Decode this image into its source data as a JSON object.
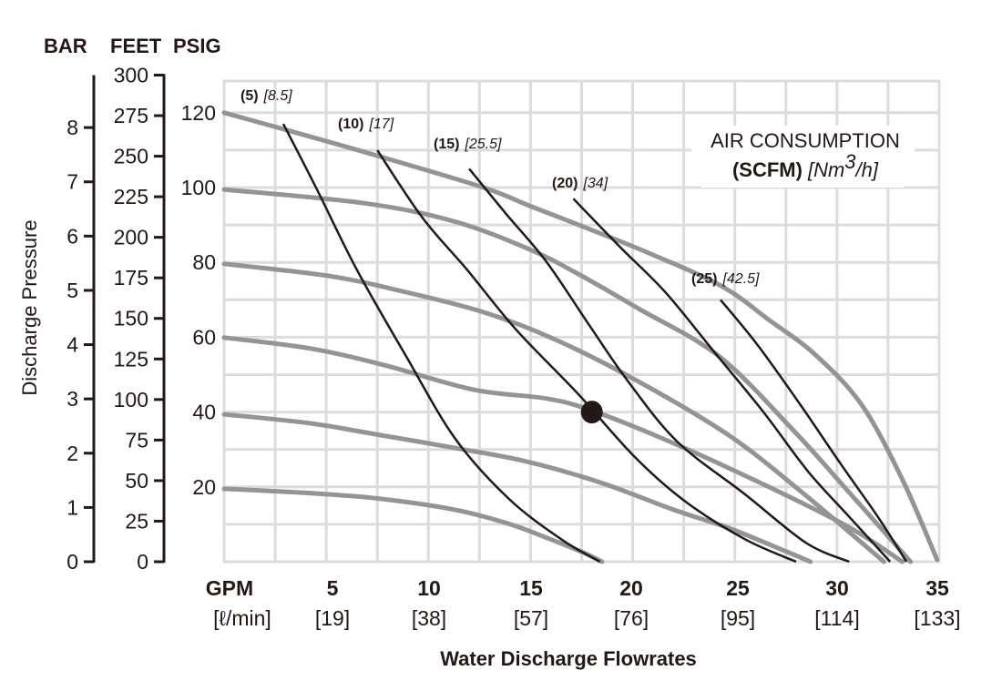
{
  "chart_data": {
    "type": "line",
    "title": "",
    "xlabel": "Water Discharge Flowrates",
    "ylabel": "Discharge Pressure",
    "xlim": [
      0,
      35
    ],
    "ylim": [
      0,
      128
    ],
    "grid": true,
    "x_axis": {
      "unit_label": "GPM",
      "alt_unit_label": "[ℓ/min]",
      "ticks": [
        {
          "value": 5,
          "label": "5",
          "alt": "[19]"
        },
        {
          "value": 10,
          "label": "10",
          "alt": "[38]"
        },
        {
          "value": 15,
          "label": "15",
          "alt": "[57]"
        },
        {
          "value": 20,
          "label": "20",
          "alt": "[76]"
        },
        {
          "value": 25,
          "label": "25",
          "alt": "[95]"
        },
        {
          "value": 30,
          "label": "30",
          "alt": "[114]"
        },
        {
          "value": 35,
          "label": "35",
          "alt": "[133]"
        }
      ]
    },
    "y_axes": {
      "bar": {
        "header": "BAR",
        "ticks": [
          "0",
          "1",
          "2",
          "3",
          "4",
          "5",
          "6",
          "7",
          "8"
        ],
        "psi_per_unit": 14.5038
      },
      "feet": {
        "header": "FEET",
        "ticks": [
          "0",
          "25",
          "50",
          "75",
          "100",
          "125",
          "150",
          "175",
          "200",
          "225",
          "250",
          "275",
          "300"
        ],
        "psi_per_unit": 0.4335
      },
      "psig": {
        "header": "PSIG",
        "ticks": [
          "20",
          "40",
          "60",
          "80",
          "100",
          "120"
        ]
      }
    },
    "annotation": {
      "line1": "AIR CONSUMPTION",
      "line2_bold": "(SCFM)",
      "line2_italic": "[Nm",
      "line2_sup": "3",
      "line2_end": "/h]"
    },
    "pressure_series": [
      {
        "name": "120 psig",
        "points": [
          [
            0,
            120
          ],
          [
            3.3,
            115
          ],
          [
            7.5,
            108.5
          ],
          [
            12.7,
            100
          ],
          [
            15,
            95
          ],
          [
            17.6,
            89.5
          ],
          [
            21,
            82
          ],
          [
            24.4,
            73.5
          ],
          [
            26.7,
            64.5
          ],
          [
            28.9,
            55.5
          ],
          [
            31.2,
            42
          ],
          [
            33.2,
            22
          ],
          [
            34.9,
            0.5
          ]
        ]
      },
      {
        "name": "100 psig",
        "points": [
          [
            0,
            99.5
          ],
          [
            6.9,
            95.8
          ],
          [
            11.3,
            90.9
          ],
          [
            14.9,
            83.6
          ],
          [
            17.3,
            77
          ],
          [
            20.3,
            67.6
          ],
          [
            24.2,
            55
          ],
          [
            27.8,
            35.5
          ],
          [
            30.6,
            18.5
          ],
          [
            33.6,
            0
          ]
        ]
      },
      {
        "name": "80 psig",
        "points": [
          [
            0,
            79.6
          ],
          [
            5.1,
            76.4
          ],
          [
            8.7,
            72.3
          ],
          [
            12.7,
            66.7
          ],
          [
            16.2,
            59.4
          ],
          [
            20.2,
            48.4
          ],
          [
            24.7,
            33.8
          ],
          [
            28.3,
            18.5
          ],
          [
            32.3,
            0
          ]
        ]
      },
      {
        "name": "60 psig",
        "points": [
          [
            0,
            59.9
          ],
          [
            4.2,
            57
          ],
          [
            7.8,
            52.6
          ],
          [
            12.2,
            46
          ],
          [
            15.8,
            43.6
          ],
          [
            18,
            40.4
          ],
          [
            21.6,
            32.6
          ],
          [
            26,
            21.7
          ],
          [
            30.5,
            9.5
          ],
          [
            33.2,
            0
          ]
        ]
      },
      {
        "name": "40 psig",
        "points": [
          [
            0,
            39.4
          ],
          [
            4.2,
            37
          ],
          [
            7.7,
            33.8
          ],
          [
            11.3,
            30.4
          ],
          [
            14.8,
            26.8
          ],
          [
            18.4,
            21.2
          ],
          [
            22,
            13.9
          ],
          [
            24.7,
            9
          ],
          [
            27.4,
            3
          ],
          [
            28.7,
            0
          ]
        ]
      },
      {
        "name": "20 psig",
        "points": [
          [
            0,
            19.5
          ],
          [
            4.6,
            18.2
          ],
          [
            7.7,
            16.8
          ],
          [
            11.3,
            13.9
          ],
          [
            13.9,
            10.2
          ],
          [
            15.7,
            6.6
          ],
          [
            17.6,
            2.4
          ],
          [
            18.5,
            0
          ]
        ]
      }
    ],
    "air_series": [
      {
        "scfm": "(5)",
        "nm3h": "[8.5]",
        "points": [
          [
            2.9,
            117
          ],
          [
            4.5,
            100
          ],
          [
            6.5,
            78
          ],
          [
            8.9,
            55
          ],
          [
            11.3,
            33
          ],
          [
            13.9,
            17
          ],
          [
            16.5,
            6
          ],
          [
            18.4,
            0
          ]
        ]
      },
      {
        "scfm": "(10)",
        "nm3h": "[17]",
        "points": [
          [
            7.5,
            110
          ],
          [
            9.7,
            92
          ],
          [
            11.9,
            78
          ],
          [
            14.3,
            62
          ],
          [
            17.3,
            45
          ],
          [
            20.1,
            28
          ],
          [
            22.6,
            16
          ],
          [
            25.5,
            6
          ],
          [
            28,
            0
          ]
        ]
      },
      {
        "scfm": "(15)",
        "nm3h": "[25.5]",
        "points": [
          [
            12,
            105
          ],
          [
            13.8,
            93
          ],
          [
            15.8,
            80
          ],
          [
            17.9,
            63
          ],
          [
            19.8,
            48
          ],
          [
            22.2,
            32
          ],
          [
            25.5,
            18
          ],
          [
            28.5,
            5
          ],
          [
            30.6,
            0
          ]
        ]
      },
      {
        "scfm": "(20)",
        "nm3h": "[34]",
        "points": [
          [
            17.1,
            97
          ],
          [
            19.4,
            84
          ],
          [
            21.6,
            72
          ],
          [
            24,
            56
          ],
          [
            26.4,
            40
          ],
          [
            28.6,
            24
          ],
          [
            30.6,
            12
          ],
          [
            32.6,
            0
          ]
        ]
      },
      {
        "scfm": "(25)",
        "nm3h": "[42.5]",
        "points": [
          [
            24.3,
            70
          ],
          [
            26.1,
            58
          ],
          [
            28.2,
            42
          ],
          [
            30.2,
            26
          ],
          [
            32,
            12
          ],
          [
            33.4,
            0
          ]
        ]
      }
    ],
    "operating_point": {
      "gpm": 18,
      "psig": 40
    },
    "colors": {
      "pressure_curve": "#949494",
      "air_curve": "#231815",
      "grid": "#dcdcdc",
      "text": "#231815"
    }
  }
}
